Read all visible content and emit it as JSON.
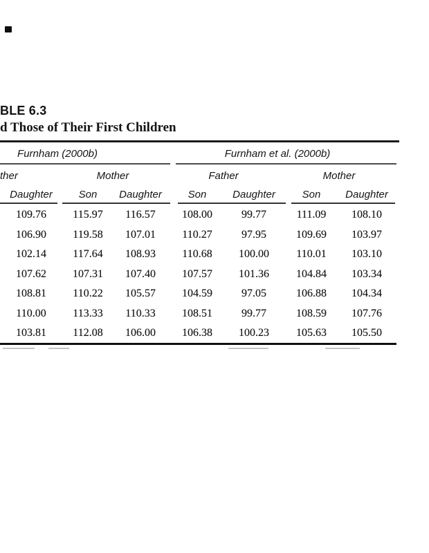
{
  "page": {
    "title_fragment": "BLE 6.3",
    "subtitle_fragment": "d Those of Their First Children"
  },
  "table": {
    "group_headers": [
      {
        "label": "Furnham (2000b)"
      },
      {
        "label": "Furnham et al. (2000b)"
      }
    ],
    "parent_headers": [
      {
        "label": "ther"
      },
      {
        "label": "Mother"
      },
      {
        "label": "Father"
      },
      {
        "label": "Mother"
      }
    ],
    "column_headers": [
      "Daughter",
      "Son",
      "Daughter",
      "Son",
      "Daughter",
      "Son",
      "Daughter"
    ],
    "rows": [
      [
        "109.76",
        "115.97",
        "116.57",
        "108.00",
        "99.77",
        "111.09",
        "108.10"
      ],
      [
        "106.90",
        "119.58",
        "107.01",
        "110.27",
        "97.95",
        "109.69",
        "103.97"
      ],
      [
        "102.14",
        "117.64",
        "108.93",
        "110.68",
        "100.00",
        "110.01",
        "103.10"
      ],
      [
        "107.62",
        "107.31",
        "107.40",
        "107.57",
        "101.36",
        "104.84",
        "103.34"
      ],
      [
        "108.81",
        "110.22",
        "105.57",
        "104.59",
        "97.05",
        "106.88",
        "104.34"
      ],
      [
        "110.00",
        "113.33",
        "110.33",
        "108.51",
        "99.77",
        "108.59",
        "107.76"
      ],
      [
        "103.81",
        "112.08",
        "106.00",
        "106.38",
        "100.23",
        "105.63",
        "105.50"
      ]
    ]
  },
  "colors": {
    "ink": "#141414",
    "rule_black": "#1a1a1a",
    "rule_gray": "#4a4a4a"
  }
}
